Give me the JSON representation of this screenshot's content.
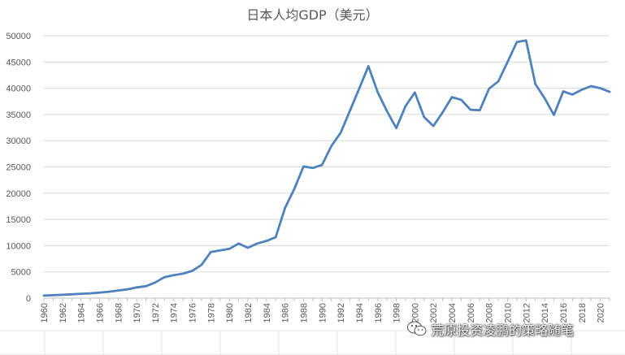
{
  "chart_data": {
    "type": "line",
    "title": "日本人均GDP（美元）",
    "xlabel": "",
    "ylabel": "",
    "ylim": [
      0,
      50000
    ],
    "yticks": [
      0,
      5000,
      10000,
      15000,
      20000,
      25000,
      30000,
      35000,
      40000,
      45000,
      50000
    ],
    "xlim": [
      1960,
      2021
    ],
    "xticks": [
      1960,
      1962,
      1964,
      1966,
      1968,
      1970,
      1972,
      1974,
      1976,
      1978,
      1980,
      1982,
      1984,
      1986,
      1988,
      1990,
      1992,
      1994,
      1996,
      1998,
      2000,
      2002,
      2004,
      2006,
      2008,
      2010,
      2012,
      2014,
      2016,
      2018,
      2020
    ],
    "grid": true,
    "legend": "none",
    "series": [
      {
        "color": "#4f81bd",
        "x": [
          1960,
          1961,
          1962,
          1963,
          1964,
          1965,
          1966,
          1967,
          1968,
          1969,
          1970,
          1971,
          1972,
          1973,
          1974,
          1975,
          1976,
          1977,
          1978,
          1979,
          1980,
          1981,
          1982,
          1983,
          1984,
          1985,
          1986,
          1987,
          1988,
          1989,
          1990,
          1991,
          1992,
          1993,
          1994,
          1995,
          1996,
          1997,
          1998,
          1999,
          2000,
          2001,
          2002,
          2003,
          2004,
          2005,
          2006,
          2007,
          2008,
          2009,
          2010,
          2011,
          2012,
          2013,
          2014,
          2015,
          2016,
          2017,
          2018,
          2019,
          2020,
          2021
        ],
        "values": [
          480,
          560,
          640,
          720,
          840,
          920,
          1060,
          1230,
          1450,
          1670,
          2040,
          2270,
          2970,
          3990,
          4360,
          4660,
          5200,
          6350,
          8800,
          9100,
          9400,
          10400,
          9600,
          10400,
          10900,
          11600,
          17200,
          20800,
          25100,
          24800,
          25400,
          29000,
          31500,
          35700,
          39900,
          44200,
          39200,
          35600,
          32400,
          36600,
          39200,
          34500,
          32800,
          35400,
          38300,
          37800,
          35900,
          35800,
          39900,
          41300,
          45000,
          48800,
          49100,
          40800,
          38100,
          34900,
          39400,
          38800,
          39700,
          40400,
          40000,
          39300
        ]
      }
    ]
  },
  "watermark": {
    "icon": "wechat-icon",
    "text": "荒原投资凌鹏的策略随笔"
  }
}
